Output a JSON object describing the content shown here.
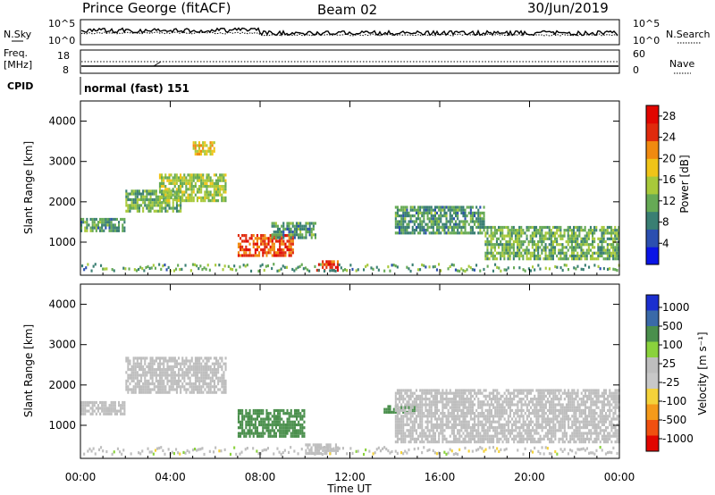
{
  "header": {
    "station": "Prince George (fitACF)",
    "beam": "Beam 02",
    "date": "30/Jun/2019"
  },
  "summary": {
    "nsky_label": "N.Sky",
    "nsearch_label": "N.Search",
    "noise_ticks": [
      "10^5",
      "10^0"
    ],
    "freq_label_line1": "Freq.",
    "freq_label_line2": "[MHz]",
    "freq_ticks": [
      "18",
      "8"
    ],
    "nave_label": "Nave",
    "nave_ticks": [
      "60",
      "0"
    ],
    "cpid_label": "CPID",
    "cpid_value": "normal (fast) 151"
  },
  "colors": {
    "power": [
      "#0a14e6",
      "#2b4fb0",
      "#3a7f73",
      "#66aa55",
      "#a8c93a",
      "#f0c418",
      "#f08a10",
      "#e02a0c",
      "#e10600"
    ],
    "velocity": [
      "#1b2fcf",
      "#3a6aa8",
      "#4a8f4c",
      "#8ad23c",
      "#bebebe",
      "#c8c8c8",
      "#f4d23a",
      "#f49a1a",
      "#f05010",
      "#e10600"
    ],
    "noise_line": "#000000"
  },
  "chart_data": [
    {
      "type": "heatmap",
      "title": "Power",
      "xlabel": "",
      "ylabel": "Slant Range [km]",
      "xlim": [
        0,
        24
      ],
      "ylim": [
        180,
        4500
      ],
      "x_ticks": [
        0,
        4,
        8,
        12,
        16,
        20,
        24
      ],
      "y_ticks": [
        1000,
        2000,
        3000,
        4000
      ],
      "colorbar": {
        "label": "Power [dB]",
        "range": [
          0,
          30
        ],
        "ticks": [
          4,
          8,
          12,
          16,
          20,
          24,
          28
        ]
      },
      "echo_regions": [
        {
          "t": [
            0.0,
            2.0
          ],
          "r": [
            1300,
            1600
          ],
          "value": 10
        },
        {
          "t": [
            2.0,
            4.5
          ],
          "r": [
            1800,
            2300
          ],
          "value": 12
        },
        {
          "t": [
            3.5,
            6.5
          ],
          "r": [
            2000,
            2700
          ],
          "value": 14
        },
        {
          "t": [
            5.0,
            6.0
          ],
          "r": [
            3200,
            3500
          ],
          "value": 18
        },
        {
          "t": [
            7.0,
            9.5
          ],
          "r": [
            700,
            1200
          ],
          "value": 24
        },
        {
          "t": [
            8.5,
            10.5
          ],
          "r": [
            1100,
            1500
          ],
          "value": 10
        },
        {
          "t": [
            10.5,
            11.5
          ],
          "r": [
            300,
            550
          ],
          "value": 26
        },
        {
          "t": [
            14.0,
            18.0
          ],
          "r": [
            1200,
            1900
          ],
          "value": 10
        },
        {
          "t": [
            18.0,
            24.0
          ],
          "r": [
            600,
            1400
          ],
          "value": 12
        }
      ]
    },
    {
      "type": "heatmap",
      "title": "Velocity",
      "xlabel": "Time UT",
      "ylabel": "Slant Range [km]",
      "xlim": [
        0,
        24
      ],
      "ylim": [
        180,
        4500
      ],
      "x_ticks": [
        "00:00",
        "04:00",
        "08:00",
        "12:00",
        "16:00",
        "20:00",
        "00:00"
      ],
      "y_ticks": [
        1000,
        2000,
        3000,
        4000
      ],
      "colorbar": {
        "label": "Velocity [m s⁻¹]",
        "ticks": [
          "1000",
          "500",
          "100",
          "25",
          "-25",
          "-100",
          "-500",
          "-1000"
        ]
      },
      "echo_regions": [
        {
          "t": [
            0.0,
            2.0
          ],
          "r": [
            1300,
            1600
          ],
          "value": 0
        },
        {
          "t": [
            2.0,
            6.5
          ],
          "r": [
            1800,
            2700
          ],
          "value": 0
        },
        {
          "t": [
            7.0,
            10.0
          ],
          "r": [
            700,
            1400
          ],
          "value": 150
        },
        {
          "t": [
            10.0,
            11.5
          ],
          "r": [
            300,
            550
          ],
          "value": 0
        },
        {
          "t": [
            13.5,
            15.0
          ],
          "r": [
            1300,
            1500
          ],
          "value": 150
        },
        {
          "t": [
            14.0,
            24.0
          ],
          "r": [
            600,
            1900
          ],
          "value": 0
        }
      ]
    }
  ]
}
